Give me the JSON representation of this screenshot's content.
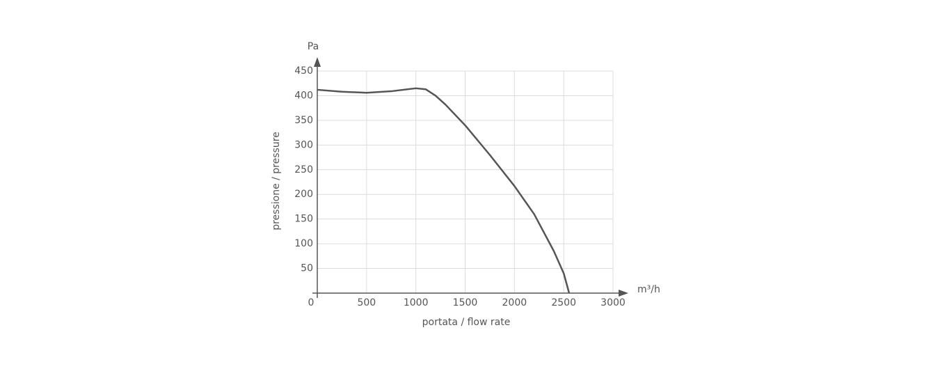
{
  "chart_data": {
    "type": "line",
    "xlabel": "portata / flow rate",
    "ylabel": "pressione / pressure",
    "x_unit": "m³/h",
    "y_unit": "Pa",
    "x": [
      0,
      250,
      500,
      750,
      1000,
      1100,
      1200,
      1300,
      1500,
      1750,
      2000,
      2200,
      2400,
      2500,
      2555
    ],
    "values": [
      412,
      408,
      406,
      409,
      415,
      413,
      400,
      382,
      340,
      280,
      217,
      160,
      85,
      40,
      0
    ],
    "color": "#555555",
    "xlim": [
      0,
      3000
    ],
    "xticks": [
      0,
      500,
      1000,
      1500,
      2000,
      2500,
      3000
    ],
    "ylim": [
      0,
      450
    ],
    "yticks": [
      50,
      100,
      150,
      200,
      250,
      300,
      350,
      400,
      450
    ],
    "grid": true
  }
}
